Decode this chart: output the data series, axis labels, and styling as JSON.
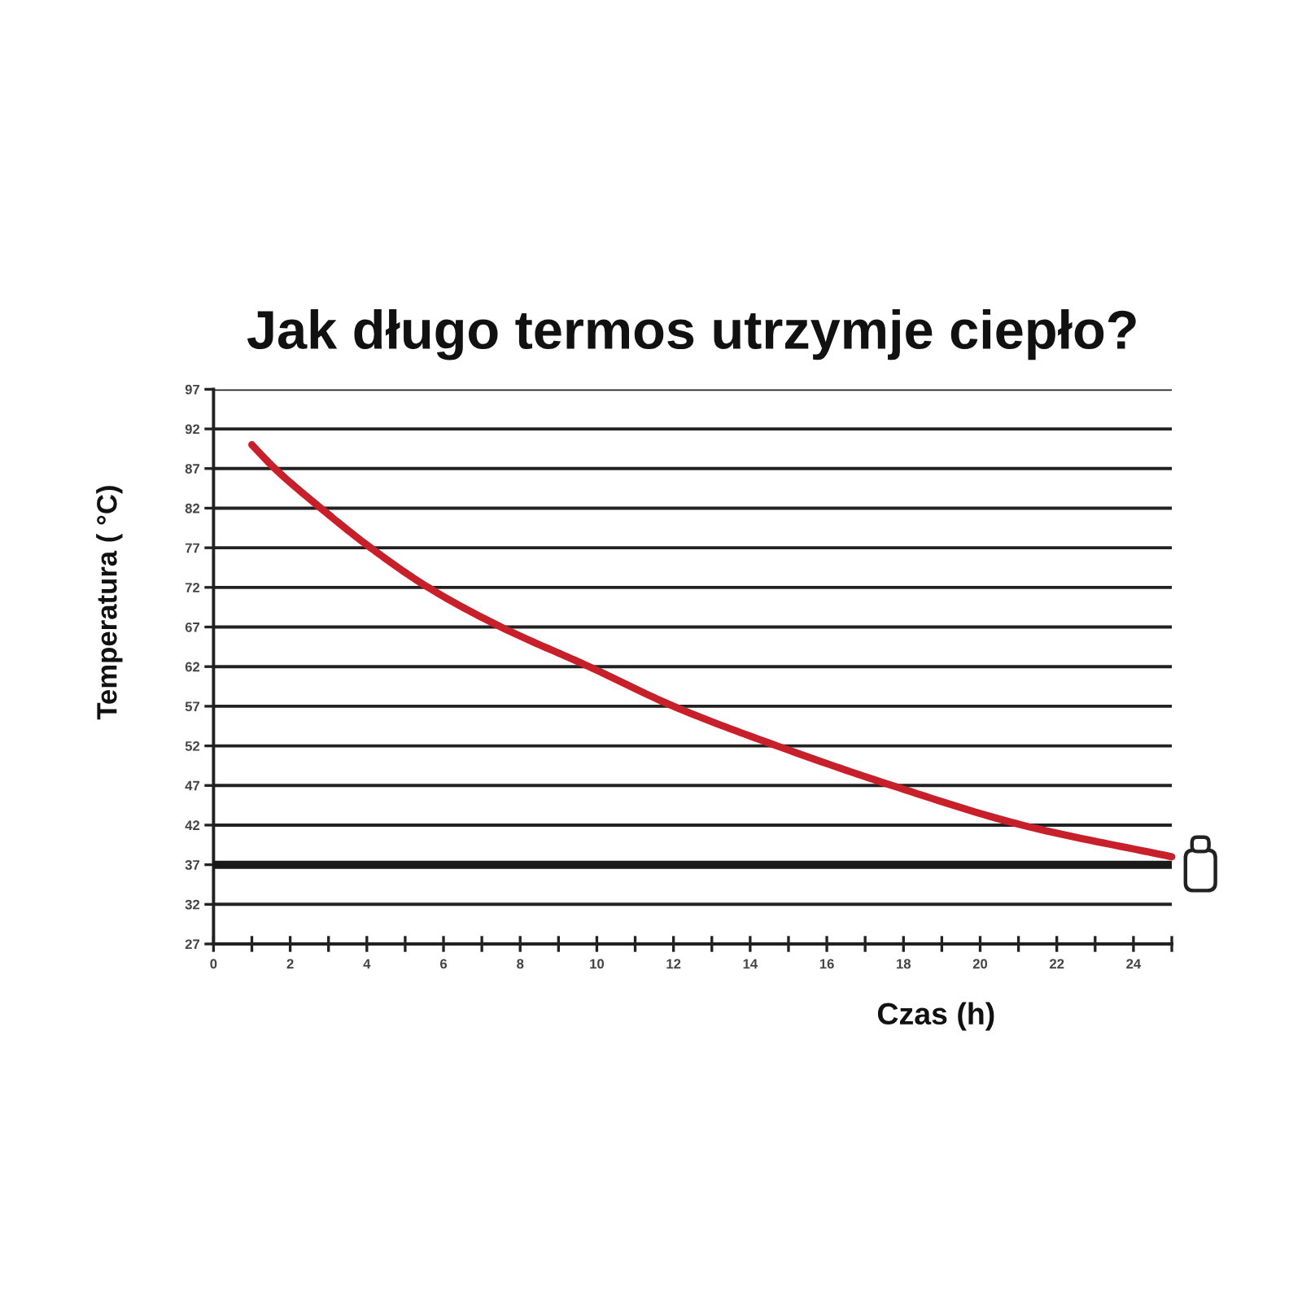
{
  "chart_data": {
    "type": "line",
    "title": "Jak długo termos utrzymje ciepło?",
    "xlabel": "Czas (h)",
    "ylabel": "Temperatura ( °C)",
    "series": [
      {
        "color": "#c8202a",
        "x": [
          1,
          1.6,
          2.8,
          4.1,
          5.6,
          7.5,
          9.8,
          12,
          14.7,
          17.7,
          21.1,
          25
        ],
        "values": [
          90,
          87,
          82,
          77,
          72,
          67,
          62,
          57,
          52,
          47,
          42,
          38
        ]
      }
    ],
    "xlim": [
      0,
      25
    ],
    "xticks": [
      0,
      {
        "value": 1,
        "label": null
      },
      2,
      {
        "value": 3,
        "label": null
      },
      4,
      {
        "value": 5,
        "label": null
      },
      6,
      {
        "value": 7,
        "label": null
      },
      8,
      {
        "value": 9,
        "label": null
      },
      10,
      {
        "value": 11,
        "label": null
      },
      12,
      {
        "value": 13,
        "label": null
      },
      14,
      {
        "value": 15,
        "label": null
      },
      16,
      {
        "value": 17,
        "label": null
      },
      18,
      {
        "value": 19,
        "label": null
      },
      20,
      {
        "value": 21,
        "label": null
      },
      22,
      {
        "value": 23,
        "label": null
      },
      24,
      {
        "value": 25,
        "label": null
      }
    ],
    "ylim": [
      27,
      97
    ],
    "yticks": [
      27,
      32,
      37,
      42,
      47,
      52,
      57,
      62,
      67,
      72,
      77,
      82,
      87,
      92,
      97
    ],
    "grid": "y",
    "line_style": "solid",
    "ref_lines": [
      {
        "axis": "y",
        "value": 37,
        "color": "#1a1a1a"
      }
    ]
  }
}
